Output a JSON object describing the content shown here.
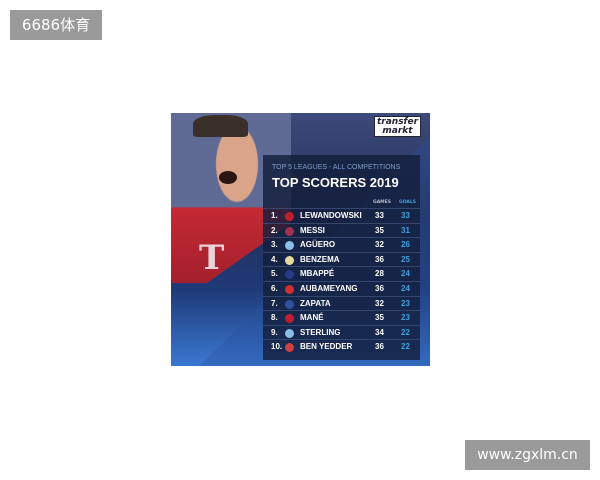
{
  "watermarks": {
    "top_left": "6686体育",
    "bottom_right": "www.zgxlm.cn"
  },
  "poster": {
    "brand": "transfer markt",
    "subtitle": "TOP 5 LEAGUES - ALL COMPETITIONS",
    "title": "TOP SCORERS 2019",
    "columns": {
      "games": "GAMES",
      "goals": "GOALS"
    },
    "rows": [
      {
        "rank": "1.",
        "name": "LEWANDOWSKI",
        "games": "33",
        "goals": "33",
        "crest": "#c0202c"
      },
      {
        "rank": "2.",
        "name": "MESSI",
        "games": "35",
        "goals": "31",
        "crest": "#a43050"
      },
      {
        "rank": "3.",
        "name": "AGÜERO",
        "games": "32",
        "goals": "26",
        "crest": "#8ac0e8"
      },
      {
        "rank": "4.",
        "name": "BENZEMA",
        "games": "36",
        "goals": "25",
        "crest": "#e8d8a0"
      },
      {
        "rank": "5.",
        "name": "MBAPPÉ",
        "games": "28",
        "goals": "24",
        "crest": "#2a3a8a"
      },
      {
        "rank": "6.",
        "name": "AUBAMEYANG",
        "games": "36",
        "goals": "24",
        "crest": "#d03030"
      },
      {
        "rank": "7.",
        "name": "ZAPATA",
        "games": "32",
        "goals": "23",
        "crest": "#3050a0"
      },
      {
        "rank": "8.",
        "name": "MANÉ",
        "games": "35",
        "goals": "23",
        "crest": "#c02030"
      },
      {
        "rank": "9.",
        "name": "STERLING",
        "games": "34",
        "goals": "22",
        "crest": "#8ac0e8"
      },
      {
        "rank": "10.",
        "name": "BEN YEDDER",
        "games": "36",
        "goals": "22",
        "crest": "#d04040"
      }
    ]
  }
}
